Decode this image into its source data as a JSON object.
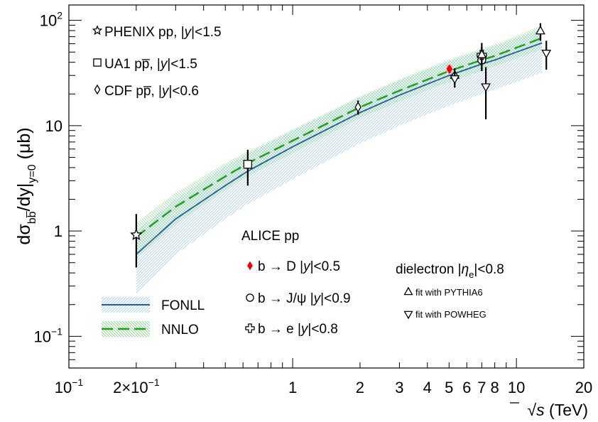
{
  "chart_data": {
    "type": "scatter",
    "title": "",
    "xlabel": {
      "prefix": "√",
      "var": "s",
      "unit": " (TeV)"
    },
    "ylabel": {
      "main": "dσ",
      "sub_bb": "bb̅",
      "tail": "/dy",
      "eval": "y=0",
      "unit": " (μb)"
    },
    "xscale": "log",
    "yscale": "log",
    "xlim": [
      0.1,
      20
    ],
    "ylim": [
      0.05,
      140
    ],
    "x_ticks": [
      {
        "v": 0.1,
        "label": "10",
        "exp": "−1"
      },
      {
        "v": 0.2,
        "label": "2×10",
        "exp": "−1"
      },
      {
        "v": 1,
        "label": "1"
      },
      {
        "v": 2,
        "label": "2"
      },
      {
        "v": 3,
        "label": "3"
      },
      {
        "v": 4,
        "label": "4"
      },
      {
        "v": 5,
        "label": "5"
      },
      {
        "v": 6,
        "label": "6"
      },
      {
        "v": 7,
        "label": "7"
      },
      {
        "v": 8,
        "label": "8"
      },
      {
        "v": 10,
        "label": "10"
      },
      {
        "v": 20,
        "label": "20"
      }
    ],
    "y_ticks": [
      {
        "v": 0.1,
        "label": "10",
        "exp": "−1"
      },
      {
        "v": 1,
        "label": "1"
      },
      {
        "v": 10,
        "label": "10"
      },
      {
        "v": 100,
        "label": "10",
        "exp": "2"
      }
    ],
    "grid": false,
    "theory": [
      {
        "name": "FONLL",
        "color": "#1f5f9a",
        "band_color": "#9ec7e6",
        "dash": "solid",
        "x": [
          0.2,
          0.3,
          0.5,
          0.63,
          1,
          2,
          3,
          5,
          7,
          8,
          10,
          13
        ],
        "y": [
          0.6,
          1.3,
          2.7,
          3.7,
          6.3,
          13.3,
          19.5,
          30,
          38.5,
          42,
          50,
          61
        ],
        "lo": [
          0.25,
          0.6,
          1.3,
          1.8,
          3.1,
          6.8,
          10,
          15.5,
          20,
          22,
          26,
          32
        ],
        "hi": [
          1.0,
          2.0,
          4.1,
          5.4,
          9.0,
          18.5,
          27,
          41,
          52,
          57,
          68,
          82
        ]
      },
      {
        "name": "NNLO",
        "color": "#1aa01a",
        "band_color": "#8fd88f",
        "dash": "long-dash",
        "x": [
          0.2,
          0.3,
          0.5,
          0.63,
          1,
          2,
          3,
          5,
          7,
          8,
          10,
          13
        ],
        "y": [
          0.88,
          1.7,
          3.3,
          4.4,
          7.2,
          15.0,
          21.5,
          33,
          42,
          46,
          55,
          68
        ],
        "lo": [
          0.55,
          1.15,
          2.45,
          3.3,
          5.5,
          11.8,
          17,
          26,
          33,
          36.5,
          43.5,
          53
        ],
        "hi": [
          1.2,
          2.3,
          4.4,
          5.7,
          9.2,
          19,
          27.5,
          42.5,
          54,
          59,
          71,
          90
        ]
      }
    ],
    "measurements": [
      {
        "name": "PHENIX pp, |y|<1.5",
        "marker": "star",
        "x": 0.2,
        "y": 0.92,
        "lo": 0.45,
        "hi": 1.45
      },
      {
        "name": "UA1 pp̅, |y|<1.5",
        "marker": "square",
        "x": 0.63,
        "y": 4.3,
        "lo": 2.7,
        "hi": 5.9
      },
      {
        "name": "CDF pp̅, |y|<0.6",
        "marker": "diamond",
        "x": 1.96,
        "y": 15.0,
        "lo": 12.7,
        "hi": 17.3
      },
      {
        "name": "b → D |y|<0.5",
        "marker": "red-diamond",
        "color": "#e8000b",
        "x": 5.02,
        "y": 34.5,
        "lo": 31.5,
        "hi": 37.5
      },
      {
        "name": "b → J/ψ |y|<0.9",
        "marker": "circle",
        "x": 7.0,
        "y": 42,
        "lo": 34,
        "hi": 50
      },
      {
        "name": "b → e |y|<0.8",
        "marker": "cross",
        "x": 7.0,
        "y": 47,
        "lo": 38,
        "hi": 56
      },
      {
        "name": "dielectron fit with PYTHIA6",
        "marker": "triangle-up",
        "x": 7.0,
        "y": 47,
        "lo": 33,
        "hi": 61
      },
      {
        "name": "dielectron fit with POWHEG",
        "marker": "triangle-down",
        "x": 7.3,
        "y": 23.5,
        "lo": 11.5,
        "hi": 36
      },
      {
        "name": "dielectron fit with PYTHIA6",
        "marker": "triangle-up",
        "x": 5.3,
        "y": 30,
        "lo": 25,
        "hi": 35
      },
      {
        "name": "dielectron fit with POWHEG",
        "marker": "triangle-down",
        "x": 5.3,
        "y": 28,
        "lo": 23,
        "hi": 33
      },
      {
        "name": "dielectron fit with PYTHIA6",
        "marker": "triangle-up",
        "x": 12.8,
        "y": 79,
        "lo": 64,
        "hi": 94
      },
      {
        "name": "dielectron fit with POWHEG",
        "marker": "triangle-down",
        "x": 13.6,
        "y": 49,
        "lo": 34,
        "hi": 64
      }
    ],
    "legend_left": [
      {
        "marker": "star",
        "text_pre": "PHENIX pp, |",
        "it": "y",
        "text_post": "|<1.5"
      },
      {
        "marker": "square",
        "text_pre": "UA1 pp̅, |",
        "it": "y",
        "text_post": "|<1.5"
      },
      {
        "marker": "diamond",
        "text_pre": "CDF pp̅, |",
        "it": "y",
        "text_post": "|<0.6"
      }
    ],
    "legend_alice": {
      "title": "ALICE pp",
      "entries": [
        {
          "marker": "red-diamond",
          "text_pre": "b → D |",
          "it": "y",
          "text_post": "|<0.5"
        },
        {
          "marker": "circle",
          "text_pre": "b → J/ψ |",
          "it": "y",
          "text_post": "|<0.9"
        },
        {
          "marker": "cross",
          "text_pre": "b → e |",
          "it": "y",
          "text_post": "|<0.8"
        }
      ]
    },
    "legend_dielectron": {
      "title_pre": "dielectron |",
      "eta": "η",
      "eta_sub": "e",
      "title_post": "|<0.8",
      "entries": [
        {
          "marker": "triangle-up",
          "text": "fit with PYTHIA6"
        },
        {
          "marker": "triangle-down",
          "text": "fit with POWHEG"
        }
      ]
    },
    "legend_theory": [
      {
        "name": "FONLL"
      },
      {
        "name": "NNLO"
      }
    ]
  }
}
